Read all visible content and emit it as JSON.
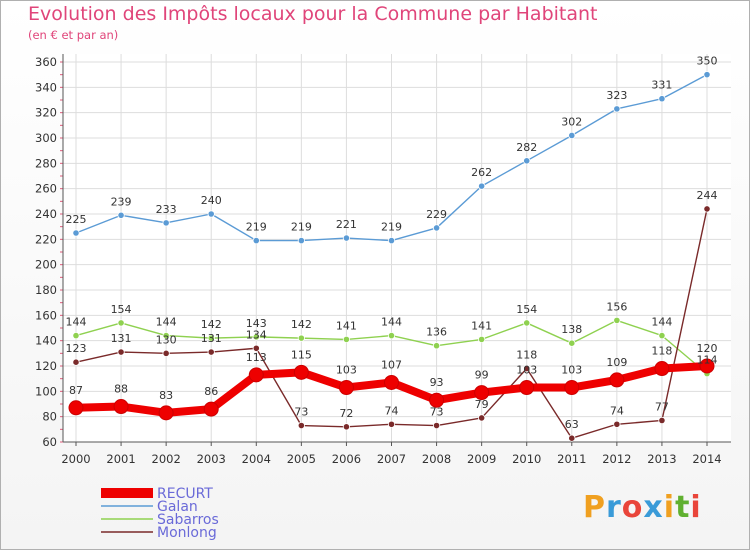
{
  "title": "Evolution des Impôts locaux pour la Commune par Habitant",
  "subtitle": "(en € et par an)",
  "logo": "Proxiti",
  "chart_data": {
    "type": "line",
    "title": "Evolution des Impôts locaux pour la Commune par Habitant",
    "subtitle": "(en € et par an)",
    "xlabel": "",
    "ylabel": "",
    "ylim": [
      60,
      360
    ],
    "yticks": [
      60,
      80,
      100,
      120,
      140,
      160,
      180,
      200,
      220,
      240,
      260,
      280,
      300,
      320,
      340,
      360
    ],
    "grid": true,
    "legend_position": "bottom-left",
    "categories": [
      "2000",
      "2001",
      "2002",
      "2003",
      "2004",
      "2005",
      "2006",
      "2007",
      "2008",
      "2009",
      "2010",
      "2011",
      "2012",
      "2013",
      "2014"
    ],
    "series": [
      {
        "name": "RECURT",
        "color": "#ee0000",
        "values": [
          87,
          88,
          83,
          86,
          113,
          115,
          103,
          107,
          93,
          99,
          103,
          103,
          109,
          118,
          120
        ]
      },
      {
        "name": "Galan",
        "color": "#5b9bd5",
        "values": [
          225,
          239,
          233,
          240,
          219,
          219,
          221,
          219,
          229,
          262,
          282,
          302,
          323,
          331,
          350
        ]
      },
      {
        "name": "Sabarros",
        "color": "#8fd150",
        "values": [
          144,
          154,
          144,
          142,
          143,
          142,
          141,
          144,
          136,
          141,
          154,
          138,
          156,
          144,
          114
        ]
      },
      {
        "name": "Monlong",
        "color": "#7a2a2a",
        "values": [
          123,
          131,
          130,
          131,
          134,
          73,
          72,
          74,
          73,
          79,
          118,
          63,
          74,
          77,
          244
        ]
      }
    ],
    "data_labels": {
      "RECURT": [
        "87",
        "88",
        "83",
        "86",
        "113",
        "115",
        "103",
        "107",
        "93",
        "99",
        "103",
        "103",
        "109",
        "118",
        "120"
      ],
      "Galan": [
        "225",
        "239",
        "233",
        "240",
        "219",
        "219",
        "221",
        "219",
        "229",
        "262",
        "282",
        "302",
        "323",
        "331",
        "350"
      ],
      "Sabarros": [
        "144",
        "154",
        "144",
        "142",
        "143",
        "142",
        "141",
        "144",
        "136",
        "141",
        "154",
        "138",
        "156",
        "144",
        "114"
      ],
      "Monlong": [
        "123",
        "131",
        "130",
        "131",
        "134",
        "73",
        "72",
        "74",
        "73",
        "79",
        "118",
        "63",
        "74",
        "77",
        "244"
      ]
    }
  }
}
